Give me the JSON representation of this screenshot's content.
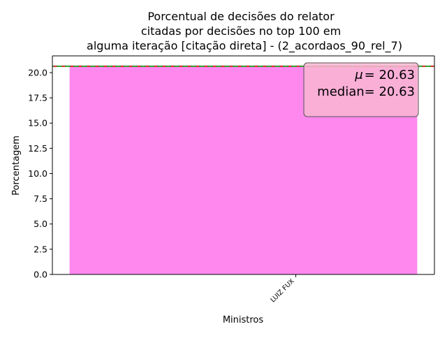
{
  "chart_data": {
    "type": "bar",
    "title": [
      "Porcentual de decisões do relator",
      "citadas por decisões no top 100 em",
      "alguma iteração [citação direta] - (2_acordaos_90_rel_7)"
    ],
    "xlabel": "Ministros",
    "ylabel": "Porcentagem",
    "categories": [
      "LUIZ FUX"
    ],
    "values": [
      20.63
    ],
    "ylim": [
      0,
      21.66
    ],
    "yticks": [
      0,
      2.5,
      5,
      7.5,
      10,
      12.5,
      15,
      17.5,
      20
    ],
    "ytick_labels": [
      "0.0",
      "2.5",
      "5.0",
      "7.5",
      "10.0",
      "12.5",
      "15.0",
      "17.5",
      "20.0"
    ],
    "bar_color": "#ff88ee",
    "mean": 20.63,
    "median": 20.63,
    "mean_line_color": "#d62728",
    "median_line_color": "#2ca02c",
    "stats_box": {
      "mean_symbol": "μ",
      "mean_text": "= 20.63",
      "median_symbol": "median",
      "median_text": "= 20.63",
      "background": "#f9b6d2"
    },
    "legend": "none",
    "grid": false
  }
}
